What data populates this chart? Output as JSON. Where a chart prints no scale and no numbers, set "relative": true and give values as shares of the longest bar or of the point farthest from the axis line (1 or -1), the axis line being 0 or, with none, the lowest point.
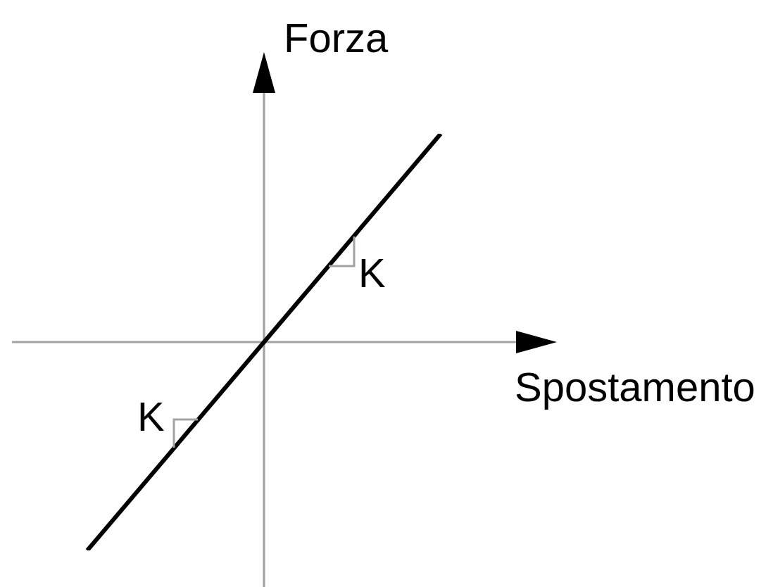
{
  "chart_data": {
    "type": "line",
    "xlabel": "Spostamento",
    "ylabel": "Forza",
    "categories": [
      null,
      null,
      null
    ],
    "values": [
      -1,
      0,
      1
    ],
    "color": "#000000",
    "relative": true,
    "tick_labels": false,
    "annotations": [
      "K",
      "K"
    ]
  }
}
